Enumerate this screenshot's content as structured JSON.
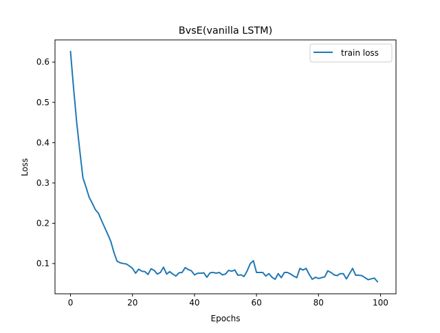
{
  "chart_data": {
    "type": "line",
    "title": "BvsE(vanilla LSTM)",
    "xlabel": "Epochs",
    "ylabel": "Loss",
    "xlim": [
      -5,
      105
    ],
    "ylim": [
      0.025,
      0.655
    ],
    "xticks": [
      0,
      20,
      40,
      60,
      80,
      100
    ],
    "yticks": [
      0.1,
      0.2,
      0.3,
      0.4,
      0.5,
      0.6
    ],
    "xtick_labels": [
      "0",
      "20",
      "40",
      "60",
      "80",
      "100"
    ],
    "ytick_labels": [
      "0.1",
      "0.2",
      "0.3",
      "0.4",
      "0.5",
      "0.6"
    ],
    "grid": false,
    "legend_position": "upper right",
    "series": [
      {
        "name": "train loss",
        "color": "#1f77b4",
        "x": [
          0,
          1,
          2,
          3,
          4,
          5,
          6,
          7,
          8,
          9,
          10,
          11,
          12,
          13,
          14,
          15,
          16,
          17,
          18,
          19,
          20,
          21,
          22,
          23,
          24,
          25,
          26,
          27,
          28,
          29,
          30,
          31,
          32,
          33,
          34,
          35,
          36,
          37,
          38,
          39,
          40,
          41,
          42,
          43,
          44,
          45,
          46,
          47,
          48,
          49,
          50,
          51,
          52,
          53,
          54,
          55,
          56,
          57,
          58,
          59,
          60,
          61,
          62,
          63,
          64,
          65,
          66,
          67,
          68,
          69,
          70,
          71,
          72,
          73,
          74,
          75,
          76,
          77,
          78,
          79,
          80,
          81,
          82,
          83,
          84,
          85,
          86,
          87,
          88,
          89,
          90,
          91,
          92,
          93,
          94,
          95,
          96,
          97,
          98,
          99
        ],
        "values": [
          0.626,
          0.535,
          0.45,
          0.38,
          0.313,
          0.29,
          0.265,
          0.25,
          0.234,
          0.225,
          0.207,
          0.19,
          0.173,
          0.155,
          0.128,
          0.106,
          0.102,
          0.1,
          0.099,
          0.094,
          0.088,
          0.076,
          0.086,
          0.081,
          0.08,
          0.073,
          0.087,
          0.083,
          0.074,
          0.078,
          0.091,
          0.074,
          0.08,
          0.074,
          0.069,
          0.077,
          0.078,
          0.09,
          0.085,
          0.082,
          0.072,
          0.076,
          0.076,
          0.077,
          0.066,
          0.077,
          0.078,
          0.076,
          0.078,
          0.072,
          0.074,
          0.083,
          0.081,
          0.084,
          0.071,
          0.072,
          0.068,
          0.082,
          0.1,
          0.107,
          0.078,
          0.078,
          0.078,
          0.069,
          0.075,
          0.066,
          0.061,
          0.075,
          0.065,
          0.078,
          0.078,
          0.074,
          0.069,
          0.065,
          0.088,
          0.084,
          0.088,
          0.073,
          0.061,
          0.066,
          0.063,
          0.065,
          0.067,
          0.082,
          0.078,
          0.072,
          0.07,
          0.075,
          0.075,
          0.062,
          0.075,
          0.088,
          0.071,
          0.071,
          0.07,
          0.065,
          0.06,
          0.062,
          0.064,
          0.055
        ]
      }
    ]
  }
}
